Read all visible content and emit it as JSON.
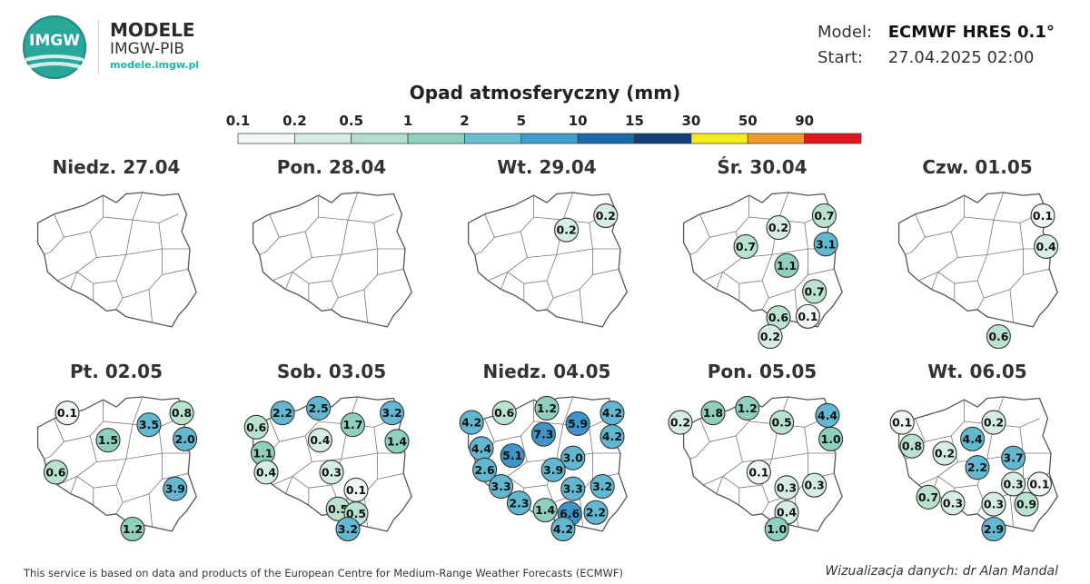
{
  "header": {
    "logo_text": "IMGW",
    "brand_title": "MODELE",
    "brand_sub": "IMGW-PIB",
    "brand_url": "modele.imgw.pl"
  },
  "model_info": {
    "model_label": "Model:",
    "model_value": "ECMWF HRES 0.1°",
    "start_label": "Start:",
    "start_value": "27.04.2025 02:00"
  },
  "legend": {
    "title": "Opad atmosferyczny (mm)",
    "labels": [
      "0.1",
      "0.2",
      "0.5",
      "1",
      "2",
      "5",
      "10",
      "15",
      "30",
      "50",
      "90"
    ],
    "colors": [
      "#f2f8f7",
      "#d6ede7",
      "#b2dfcd",
      "#8dd0c0",
      "#68bfd2",
      "#3d9fcc",
      "#1b6aa8",
      "#133f78",
      "#f4ec1a",
      "#f29b2b",
      "#e2161c"
    ]
  },
  "days": [
    {
      "title": "Niedz. 27.04",
      "points": []
    },
    {
      "title": "Pon. 28.04",
      "points": []
    },
    {
      "title": "Wt. 29.04",
      "points": [
        {
          "v": "0.2",
          "x": 0.62,
          "y": 0.3
        },
        {
          "v": "0.2",
          "x": 0.86,
          "y": 0.18
        }
      ]
    },
    {
      "title": "Śr. 30.04",
      "points": [
        {
          "v": "0.2",
          "x": 0.6,
          "y": 0.28
        },
        {
          "v": "0.7",
          "x": 0.88,
          "y": 0.18
        },
        {
          "v": "0.7",
          "x": 0.4,
          "y": 0.44
        },
        {
          "v": "3.1",
          "x": 0.89,
          "y": 0.42
        },
        {
          "v": "1.1",
          "x": 0.65,
          "y": 0.6
        },
        {
          "v": "0.7",
          "x": 0.82,
          "y": 0.82
        },
        {
          "v": "0.6",
          "x": 0.6,
          "y": 1.04
        },
        {
          "v": "0.1",
          "x": 0.78,
          "y": 1.03
        },
        {
          "v": "0.2",
          "x": 0.55,
          "y": 1.2
        }
      ]
    },
    {
      "title": "Czw. 01.05",
      "points": [
        {
          "v": "0.1",
          "x": 0.9,
          "y": 0.18
        },
        {
          "v": "0.4",
          "x": 0.92,
          "y": 0.44
        },
        {
          "v": "0.6",
          "x": 0.63,
          "y": 1.2
        }
      ]
    },
    {
      "title": "Pt. 02.05",
      "points": [
        {
          "v": "0.1",
          "x": 0.2,
          "y": 0.12
        },
        {
          "v": "3.5",
          "x": 0.7,
          "y": 0.22
        },
        {
          "v": "0.8",
          "x": 0.9,
          "y": 0.12
        },
        {
          "v": "1.5",
          "x": 0.45,
          "y": 0.35
        },
        {
          "v": "2.0",
          "x": 0.92,
          "y": 0.34
        },
        {
          "v": "0.6",
          "x": 0.13,
          "y": 0.62
        },
        {
          "v": "3.9",
          "x": 0.86,
          "y": 0.76
        },
        {
          "v": "1.2",
          "x": 0.6,
          "y": 1.1
        }
      ]
    },
    {
      "title": "Sob. 03.05",
      "points": [
        {
          "v": "2.2",
          "x": 0.2,
          "y": 0.12
        },
        {
          "v": "2.5",
          "x": 0.42,
          "y": 0.08
        },
        {
          "v": "3.2",
          "x": 0.87,
          "y": 0.12
        },
        {
          "v": "0.6",
          "x": 0.04,
          "y": 0.24
        },
        {
          "v": "1.7",
          "x": 0.63,
          "y": 0.22
        },
        {
          "v": "0.4",
          "x": 0.43,
          "y": 0.35
        },
        {
          "v": "1.4",
          "x": 0.9,
          "y": 0.36
        },
        {
          "v": "1.1",
          "x": 0.08,
          "y": 0.46
        },
        {
          "v": "0.4",
          "x": 0.1,
          "y": 0.62
        },
        {
          "v": "0.3",
          "x": 0.5,
          "y": 0.62
        },
        {
          "v": "0.1",
          "x": 0.65,
          "y": 0.77
        },
        {
          "v": "0.5",
          "x": 0.54,
          "y": 0.93
        },
        {
          "v": "0.5",
          "x": 0.65,
          "y": 0.97
        },
        {
          "v": "3.2",
          "x": 0.6,
          "y": 1.1
        }
      ]
    },
    {
      "title": "Niedz. 04.05",
      "points": [
        {
          "v": "0.6",
          "x": 0.24,
          "y": 0.12
        },
        {
          "v": "1.2",
          "x": 0.5,
          "y": 0.08
        },
        {
          "v": "4.2",
          "x": 0.9,
          "y": 0.12
        },
        {
          "v": "4.2",
          "x": 0.04,
          "y": 0.2
        },
        {
          "v": "5.9",
          "x": 0.69,
          "y": 0.21
        },
        {
          "v": "7.3",
          "x": 0.48,
          "y": 0.3
        },
        {
          "v": "4.2",
          "x": 0.9,
          "y": 0.32
        },
        {
          "v": "4.4",
          "x": 0.1,
          "y": 0.42
        },
        {
          "v": "5.1",
          "x": 0.29,
          "y": 0.48
        },
        {
          "v": "3.0",
          "x": 0.66,
          "y": 0.5
        },
        {
          "v": "2.6",
          "x": 0.12,
          "y": 0.6
        },
        {
          "v": "3.9",
          "x": 0.54,
          "y": 0.6
        },
        {
          "v": "3.3",
          "x": 0.22,
          "y": 0.74
        },
        {
          "v": "3.3",
          "x": 0.66,
          "y": 0.76
        },
        {
          "v": "3.2",
          "x": 0.84,
          "y": 0.74
        },
        {
          "v": "2.3",
          "x": 0.33,
          "y": 0.88
        },
        {
          "v": "1.4",
          "x": 0.49,
          "y": 0.94
        },
        {
          "v": "6.6",
          "x": 0.64,
          "y": 0.97
        },
        {
          "v": "2.2",
          "x": 0.8,
          "y": 0.96
        },
        {
          "v": "4.2",
          "x": 0.6,
          "y": 1.1
        }
      ]
    },
    {
      "title": "Pon. 05.05",
      "points": [
        {
          "v": "0.2",
          "x": 0.0,
          "y": 0.2
        },
        {
          "v": "1.8",
          "x": 0.2,
          "y": 0.12
        },
        {
          "v": "1.2",
          "x": 0.41,
          "y": 0.08
        },
        {
          "v": "4.4",
          "x": 0.9,
          "y": 0.14
        },
        {
          "v": "0.5",
          "x": 0.62,
          "y": 0.2
        },
        {
          "v": "1.0",
          "x": 0.92,
          "y": 0.34
        },
        {
          "v": "0.1",
          "x": 0.48,
          "y": 0.62
        },
        {
          "v": "0.3",
          "x": 0.65,
          "y": 0.75
        },
        {
          "v": "0.3",
          "x": 0.82,
          "y": 0.73
        },
        {
          "v": "0.4",
          "x": 0.65,
          "y": 0.96
        },
        {
          "v": "1.0",
          "x": 0.59,
          "y": 1.1
        }
      ]
    },
    {
      "title": "Wt. 06.05",
      "points": [
        {
          "v": "0.1",
          "x": 0.04,
          "y": 0.2
        },
        {
          "v": "0.2",
          "x": 0.6,
          "y": 0.2
        },
        {
          "v": "4.4",
          "x": 0.47,
          "y": 0.34
        },
        {
          "v": "0.8",
          "x": 0.1,
          "y": 0.4
        },
        {
          "v": "0.2",
          "x": 0.3,
          "y": 0.46
        },
        {
          "v": "3.7",
          "x": 0.72,
          "y": 0.5
        },
        {
          "v": "2.2",
          "x": 0.5,
          "y": 0.58
        },
        {
          "v": "0.3",
          "x": 0.72,
          "y": 0.72
        },
        {
          "v": "0.1",
          "x": 0.88,
          "y": 0.72
        },
        {
          "v": "0.7",
          "x": 0.2,
          "y": 0.83
        },
        {
          "v": "0.3",
          "x": 0.35,
          "y": 0.88
        },
        {
          "v": "0.3",
          "x": 0.6,
          "y": 0.89
        },
        {
          "v": "0.9",
          "x": 0.8,
          "y": 0.89
        },
        {
          "v": "2.9",
          "x": 0.6,
          "y": 1.1
        }
      ]
    }
  ],
  "footer": {
    "source": "This service is based on data and products of the European Centre for Medium-Range Weather Forecasts (ECMWF)",
    "credit": "Wizualizacja danych: dr Alan Mandal"
  }
}
